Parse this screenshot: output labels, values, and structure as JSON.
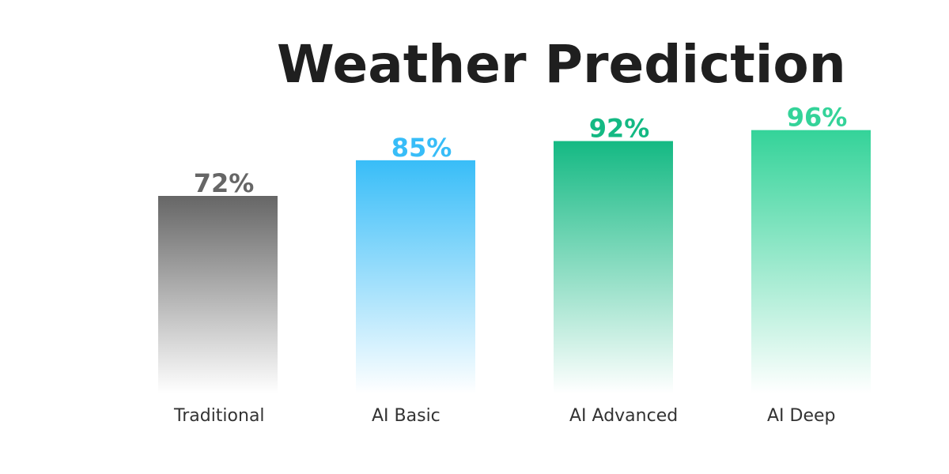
{
  "chart_data": {
    "type": "bar",
    "title": "Weather Prediction",
    "categories": [
      "Traditional",
      "AI Basic",
      "AI Advanced",
      "AI Deep"
    ],
    "values": [
      72,
      85,
      92,
      96
    ],
    "value_labels": [
      "72%",
      "85%",
      "92%",
      "96%"
    ],
    "colors": [
      "#666666",
      "#38bdf8",
      "#14b983",
      "#34d399"
    ]
  }
}
